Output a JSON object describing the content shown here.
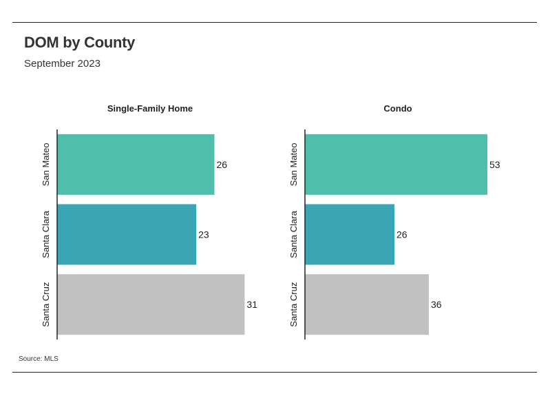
{
  "header": {
    "title": "DOM by County",
    "subtitle": "September 2023"
  },
  "footer": {
    "source": "Source: MLS"
  },
  "colors": {
    "San Mateo": "#4fbeaa",
    "Santa Clara": "#3aa6b3",
    "Santa Cruz": "#c1c1c1",
    "axis": "#222222",
    "text": "#222222"
  },
  "chart_data": [
    {
      "type": "bar",
      "orientation": "horizontal",
      "title": "Single-Family Home",
      "categories": [
        "San Mateo",
        "Santa Clara",
        "Santa Cruz"
      ],
      "values": [
        26,
        23,
        31
      ],
      "xlim": [
        0,
        33
      ],
      "grid": false,
      "data_labels": true
    },
    {
      "type": "bar",
      "orientation": "horizontal",
      "title": "Condo",
      "categories": [
        "San Mateo",
        "Santa Clara",
        "Santa Cruz"
      ],
      "values": [
        53,
        26,
        36
      ],
      "xlim": [
        0,
        56
      ],
      "grid": false,
      "data_labels": true
    }
  ]
}
